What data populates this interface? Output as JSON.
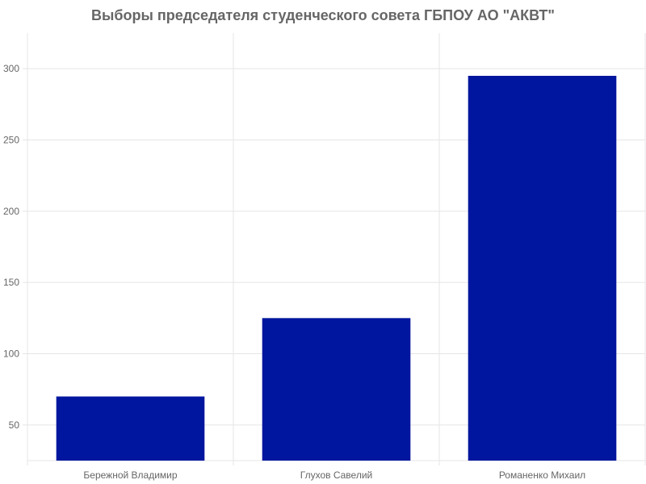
{
  "chart_data": {
    "type": "bar",
    "title": "Выборы председателя студенческого совета ГБПОУ АО \"АКВТ\"",
    "categories": [
      "Бережной Владимир",
      "Глухов Савелий",
      "Романенко Михаил"
    ],
    "series": [
      {
        "values": [
          70,
          125,
          295
        ]
      }
    ],
    "ylim": [
      25,
      325
    ],
    "yticks": [
      50,
      100,
      150,
      200,
      250,
      300
    ],
    "grid": true,
    "legend": "none",
    "colors": {
      "bar": "#00169e",
      "grid": "#e5e5e5",
      "text": "#666666"
    }
  }
}
